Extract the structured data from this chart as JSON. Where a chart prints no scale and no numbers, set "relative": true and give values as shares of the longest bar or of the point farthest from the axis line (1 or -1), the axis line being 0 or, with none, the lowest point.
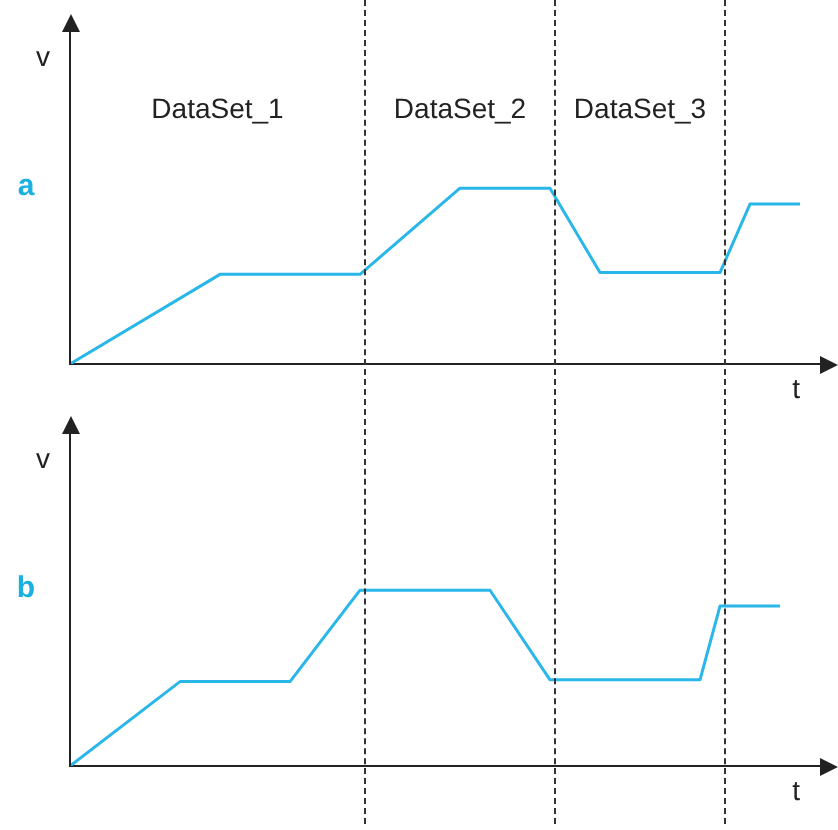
{
  "chart_data": [
    {
      "type": "line",
      "title": "a",
      "xlabel": "t",
      "ylabel": "v",
      "relative": true,
      "tick_labels": false,
      "legend": false,
      "marker": "none",
      "line_style": "solid",
      "categories": [
        null,
        null,
        null,
        null,
        null,
        null,
        null,
        null,
        null,
        null,
        null,
        null,
        null,
        null,
        null,
        null,
        null,
        null,
        null,
        null,
        null,
        null,
        null,
        null,
        null,
        null,
        null,
        null,
        null,
        null,
        null,
        null,
        null,
        null,
        null,
        null,
        null,
        null,
        null,
        null,
        null,
        null,
        null,
        null,
        null,
        null,
        null,
        null,
        null,
        null,
        null,
        null,
        null,
        null,
        null,
        null,
        null,
        null,
        null,
        null,
        null,
        null,
        null,
        null,
        null,
        null,
        null,
        null,
        null,
        null,
        null,
        null,
        null,
        null,
        null,
        null
      ],
      "series": [
        {
          "color": "#29b6e8",
          "values": [
            0,
            null,
            null,
            null,
            null,
            null,
            null,
            null,
            null,
            null,
            null,
            null,
            null,
            null,
            null,
            0.51,
            null,
            null,
            null,
            null,
            null,
            null,
            null,
            null,
            null,
            null,
            null,
            null,
            null,
            0.51,
            null,
            null,
            null,
            null,
            null,
            null,
            null,
            null,
            null,
            1,
            null,
            null,
            null,
            null,
            null,
            null,
            null,
            null,
            1,
            null,
            null,
            null,
            null,
            0.52,
            null,
            null,
            null,
            null,
            null,
            null,
            null,
            null,
            null,
            null,
            null,
            0.52,
            null,
            null,
            0.91,
            null,
            null,
            null,
            null,
            0.91,
            null,
            null
          ]
        }
      ],
      "annotations": [
        "DataSet_1",
        "DataSet_2",
        "DataSet_3"
      ]
    },
    {
      "type": "line",
      "title": "b",
      "xlabel": "t",
      "ylabel": "v",
      "relative": true,
      "tick_labels": false,
      "legend": false,
      "marker": "none",
      "line_style": "solid",
      "categories": [
        null,
        null,
        null,
        null,
        null,
        null,
        null,
        null,
        null,
        null,
        null,
        null,
        null,
        null,
        null,
        null,
        null,
        null,
        null,
        null,
        null,
        null,
        null,
        null,
        null,
        null,
        null,
        null,
        null,
        null,
        null,
        null,
        null,
        null,
        null,
        null,
        null,
        null,
        null,
        null,
        null,
        null,
        null,
        null,
        null,
        null,
        null,
        null,
        null,
        null,
        null,
        null,
        null,
        null,
        null,
        null,
        null,
        null,
        null,
        null,
        null,
        null,
        null,
        null,
        null,
        null,
        null,
        null,
        null,
        null,
        null,
        null,
        null,
        null,
        null,
        null
      ],
      "series": [
        {
          "color": "#29b6e8",
          "values": [
            0,
            null,
            null,
            null,
            null,
            null,
            null,
            null,
            null,
            null,
            null,
            0.48,
            null,
            null,
            null,
            null,
            null,
            null,
            null,
            null,
            null,
            null,
            0.48,
            null,
            null,
            null,
            null,
            null,
            null,
            1,
            null,
            null,
            null,
            null,
            null,
            null,
            null,
            null,
            null,
            null,
            null,
            null,
            1,
            null,
            null,
            null,
            null,
            null,
            0.49,
            null,
            null,
            null,
            null,
            null,
            null,
            null,
            null,
            null,
            null,
            null,
            null,
            null,
            null,
            0.49,
            null,
            0.91,
            null,
            null,
            null,
            null,
            null,
            0.91,
            null,
            null,
            null,
            null
          ]
        }
      ]
    }
  ]
}
